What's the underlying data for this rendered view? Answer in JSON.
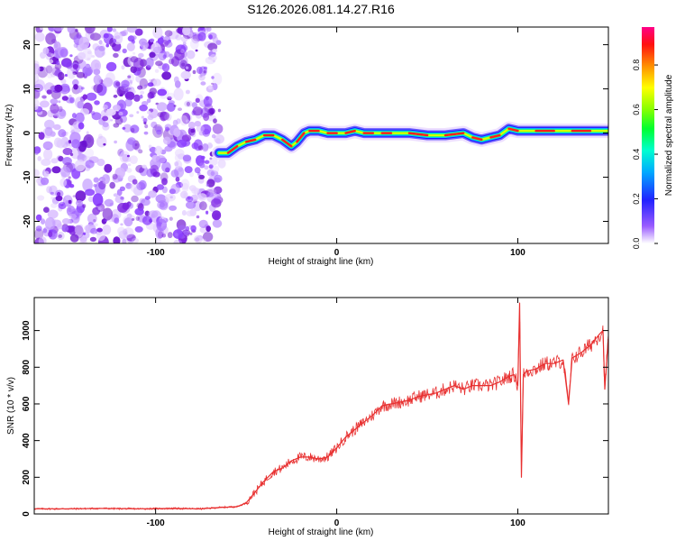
{
  "figure_title": "S126.2026.081.14.27.R16",
  "colors": {
    "snr_line": "#e83030",
    "noise_purple": "#7a1fe0",
    "axis": "#000000"
  },
  "chart_data": [
    {
      "type": "heatmap",
      "title": "S126.2026.081.14.27.R16",
      "xlabel": "Height of straight line (km)",
      "ylabel": "Frequency (Hz)",
      "xlim": [
        -167,
        150
      ],
      "ylim": [
        -25,
        24
      ],
      "xticks": [
        -100,
        0,
        100
      ],
      "yticks": [
        -20,
        -10,
        0,
        10,
        20
      ],
      "noise_region_x": [
        -167,
        -65
      ],
      "ridge": {
        "x": [
          -65,
          -60,
          -55,
          -50,
          -45,
          -40,
          -35,
          -30,
          -25,
          -22,
          -18,
          -15,
          -10,
          -5,
          0,
          5,
          10,
          15,
          20,
          25,
          30,
          40,
          50,
          60,
          70,
          75,
          80,
          85,
          90,
          95,
          100,
          110,
          120,
          130,
          140,
          150
        ],
        "freq": [
          -4.5,
          -4.5,
          -3,
          -2,
          -1.5,
          -0.5,
          -0.5,
          -1.5,
          -3,
          -2,
          0,
          0.5,
          0.5,
          0,
          0,
          0,
          0.5,
          0,
          0,
          0,
          0,
          0,
          -0.5,
          -0.5,
          0,
          -1,
          -1.5,
          -1,
          -0.5,
          1,
          0.5,
          0.5,
          0.5,
          0.5,
          0.5,
          0.5
        ]
      },
      "colorbar": {
        "label": "Normalized spectral amplitude",
        "ticks": [
          0.0,
          0.2,
          0.4,
          0.6,
          0.8
        ],
        "tick_labels": [
          "0.0",
          "0.2",
          "0.4",
          "0.6",
          "0.8"
        ],
        "range": [
          0,
          0.97
        ]
      }
    },
    {
      "type": "line",
      "xlabel": "Height of straight line (km)",
      "ylabel": "SNR (10 * v/v)",
      "xlim": [
        -167,
        150
      ],
      "ylim": [
        0,
        1180
      ],
      "xticks": [
        -100,
        0,
        100
      ],
      "yticks": [
        0,
        200,
        400,
        600,
        800,
        1000
      ],
      "series": [
        {
          "x": [
            -167,
            -150,
            -130,
            -110,
            -90,
            -75,
            -65,
            -55,
            -50,
            -45,
            -40,
            -35,
            -30,
            -25,
            -20,
            -15,
            -10,
            -5,
            0,
            5,
            10,
            15,
            20,
            25,
            30,
            35,
            40,
            45,
            50,
            55,
            60,
            65,
            70,
            75,
            80,
            85,
            90,
            95,
            98,
            100,
            101,
            102,
            103,
            105,
            110,
            115,
            120,
            125,
            128,
            130,
            135,
            140,
            145,
            147,
            148,
            150
          ],
          "y": [
            28,
            28,
            30,
            28,
            30,
            28,
            35,
            40,
            60,
            120,
            180,
            230,
            250,
            290,
            310,
            310,
            300,
            310,
            360,
            420,
            460,
            500,
            540,
            590,
            600,
            610,
            620,
            640,
            650,
            660,
            680,
            700,
            680,
            700,
            700,
            700,
            720,
            750,
            760,
            700,
            1150,
            200,
            760,
            780,
            790,
            820,
            820,
            840,
            600,
            850,
            880,
            920,
            980,
            1000,
            680,
            970
          ]
        }
      ]
    }
  ]
}
